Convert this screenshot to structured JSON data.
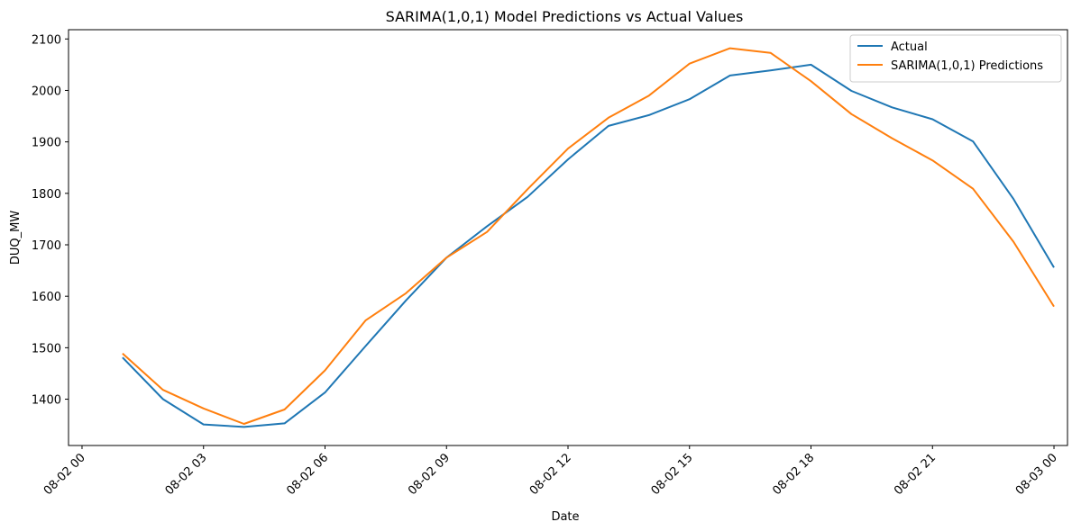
{
  "chart_data": {
    "type": "line",
    "title": "SARIMA(1,0,1) Model Predictions vs Actual Values",
    "xlabel": "Date",
    "ylabel": "DUQ_MW",
    "x_type": "datetime",
    "x": [
      "08-02 01",
      "08-02 02",
      "08-02 03",
      "08-02 04",
      "08-02 05",
      "08-02 06",
      "08-02 07",
      "08-02 08",
      "08-02 09",
      "08-02 10",
      "08-02 11",
      "08-02 12",
      "08-02 13",
      "08-02 14",
      "08-02 15",
      "08-02 16",
      "08-02 17",
      "08-02 18",
      "08-02 19",
      "08-02 20",
      "08-02 21",
      "08-02 22",
      "08-02 23",
      "08-03 00"
    ],
    "series": [
      {
        "name": "Actual",
        "color": "#1f77b4",
        "values": [
          1481,
          1400,
          1351,
          1346,
          1353,
          1413,
          1503,
          1592,
          1675,
          1736,
          1793,
          1866,
          1931,
          1952,
          1983,
          2029,
          2039,
          2050,
          1999,
          1967,
          1944,
          1901,
          1789,
          1656
        ]
      },
      {
        "name": "SARIMA(1,0,1) Predictions",
        "color": "#ff7f0e",
        "values": [
          1489,
          1418,
          1382,
          1352,
          1380,
          1456,
          1553,
          1606,
          1675,
          1725,
          1808,
          1887,
          1947,
          1990,
          2052,
          2082,
          2073,
          2018,
          1954,
          1907,
          1864,
          1809,
          1706,
          1580
        ]
      }
    ],
    "xticks": [
      "08-02 00",
      "08-02 03",
      "08-02 06",
      "08-02 09",
      "08-02 12",
      "08-02 15",
      "08-02 18",
      "08-02 21",
      "08-03 00"
    ],
    "yticks": [
      1400,
      1500,
      1600,
      1700,
      1800,
      1900,
      2000,
      2100
    ],
    "xlim": [
      "08-01 23:40",
      "08-03 00:20"
    ],
    "ylim": [
      1310,
      2118
    ],
    "legend": "top-right",
    "grid": false
  }
}
